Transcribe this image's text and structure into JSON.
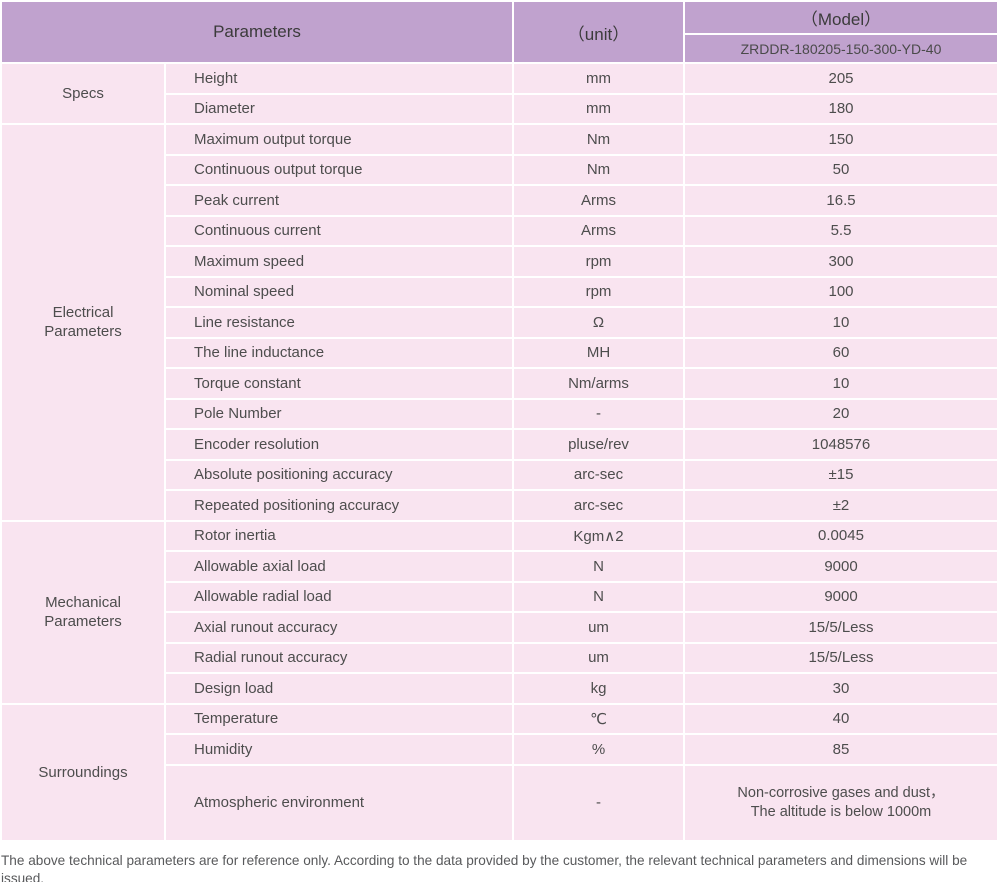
{
  "table": {
    "header": {
      "parameters": "Parameters",
      "unit": "（unit）",
      "model": "（Model）",
      "model_number": "ZRDDR-180205-150-300-YD-40"
    },
    "groups": [
      {
        "category": "Specs",
        "rows": [
          {
            "param": "Height",
            "unit": "mm",
            "value": "205"
          },
          {
            "param": "Diameter",
            "unit": "mm",
            "value": "180"
          }
        ]
      },
      {
        "category": "Electrical Parameters",
        "rows": [
          {
            "param": "Maximum output torque",
            "unit": "Nm",
            "value": "150"
          },
          {
            "param": "Continuous output torque",
            "unit": "Nm",
            "value": "50"
          },
          {
            "param": "Peak current",
            "unit": "Arms",
            "value": "16.5"
          },
          {
            "param": "Continuous current",
            "unit": "Arms",
            "value": "5.5"
          },
          {
            "param": "Maximum speed",
            "unit": "rpm",
            "value": "300"
          },
          {
            "param": "Nominal speed",
            "unit": "rpm",
            "value": "100"
          },
          {
            "param": "Line resistance",
            "unit": "Ω",
            "value": "10"
          },
          {
            "param": "The line inductance",
            "unit": "MH",
            "value": "60"
          },
          {
            "param": "Torque constant",
            "unit": "Nm/arms",
            "value": "10"
          },
          {
            "param": "Pole Number",
            "unit": "-",
            "value": "20"
          },
          {
            "param": "Encoder resolution",
            "unit": "pluse/rev",
            "value": "1048576"
          },
          {
            "param": "Absolute positioning accuracy",
            "unit": "arc-sec",
            "value": "±15"
          },
          {
            "param": "Repeated positioning accuracy",
            "unit": "arc-sec",
            "value": "±2"
          }
        ]
      },
      {
        "category": "Mechanical Parameters",
        "rows": [
          {
            "param": "Rotor inertia",
            "unit": "Kgm∧2",
            "value": "0.0045"
          },
          {
            "param": "Allowable axial load",
            "unit": "N",
            "value": "9000"
          },
          {
            "param": "Allowable radial load",
            "unit": "N",
            "value": "9000"
          },
          {
            "param": "Axial runout accuracy",
            "unit": "um",
            "value": "15/5/Less"
          },
          {
            "param": "Radial runout accuracy",
            "unit": "um",
            "value": "15/5/Less"
          },
          {
            "param": "Design load",
            "unit": "kg",
            "value": "30"
          }
        ]
      },
      {
        "category": "Surroundings",
        "rows": [
          {
            "param": "Temperature",
            "unit": "℃",
            "value": "40"
          },
          {
            "param": "Humidity",
            "unit": "%",
            "value": "85"
          },
          {
            "param": "Atmospheric environment",
            "unit": "-",
            "value": "Non-corrosive gases and dust，\nThe altitude is below 1000m"
          }
        ]
      }
    ]
  },
  "footer": {
    "note": "The above technical parameters are for reference only. According to the data provided by the customer, the relevant technical parameters and dimensions will be issued."
  },
  "colors": {
    "header_bg": "#c0a2ce",
    "cell_bg": "#f9e4f0",
    "body_text": "#4d4d4d",
    "footer_text": "#58595b"
  }
}
